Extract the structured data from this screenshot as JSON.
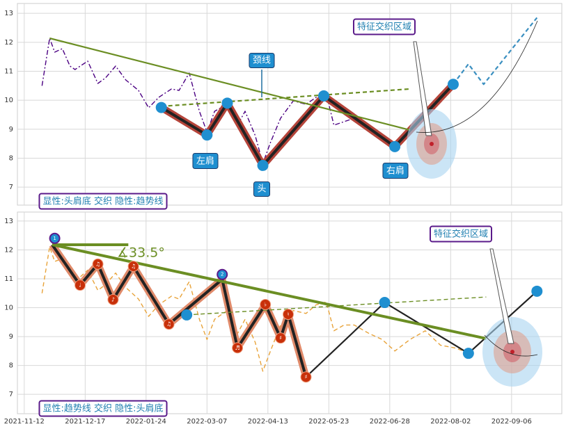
{
  "chart_data": [
    {
      "type": "line",
      "annotations": [
        "颈线",
        "左肩",
        "头",
        "右肩",
        "特征交织区域"
      ],
      "note": "显性:头肩底 交织 隐性:趋势线",
      "xlim": [
        -2.7,
        211.8
      ],
      "ylim": [
        6.38,
        13.34
      ],
      "yticks": [
        7,
        8,
        9,
        10,
        11,
        12,
        13
      ],
      "grid": true,
      "series": [
        {
          "color": "#4b0082",
          "linestyle": "dashdot",
          "linewidth": "thin",
          "x": [
            7,
            10,
            12,
            15,
            18,
            20,
            25,
            29,
            32,
            36,
            40,
            45,
            49,
            53,
            58,
            61,
            65,
            69,
            72,
            75,
            80,
            84,
            87,
            91,
            94,
            97,
            101,
            106,
            111,
            115,
            119,
            122,
            126,
            130,
            136,
            141,
            146
          ],
          "values": [
            10.5,
            12.14,
            11.66,
            11.78,
            11.18,
            11.06,
            11.35,
            10.58,
            10.77,
            11.18,
            10.7,
            10.34,
            9.74,
            10.1,
            10.39,
            10.34,
            10.94,
            9.62,
            8.9,
            9.62,
            9.86,
            9.14,
            9.62,
            8.78,
            7.82,
            8.54,
            9.38,
            9.98,
            9.86,
            10.1,
            10.22,
            9.14,
            9.26,
            9.38,
            9.02,
            8.78,
            8.42
          ]
        },
        {
          "color": "#222222",
          "highlight": "#b5443a",
          "linestyle": "solid",
          "linewidth": "thick",
          "x": [
            54,
            72,
            80,
            94,
            118,
            146,
            169
          ],
          "values": [
            9.75,
            8.8,
            9.9,
            7.75,
            10.15,
            8.4,
            10.55
          ]
        },
        {
          "color": "#6b8e23",
          "linestyle": "solid",
          "linewidth": "medium",
          "x": [
            10,
            152
          ],
          "values": [
            12.14,
            8.97
          ]
        },
        {
          "color": "#6b8e23",
          "linestyle": "dashed",
          "linewidth": "medium",
          "x": [
            54,
            152
          ],
          "values": [
            9.79,
            10.39
          ]
        },
        {
          "color": "#3a8fc0",
          "linestyle": "dashed",
          "linewidth": "medium",
          "x": [
            169,
            175,
            181,
            202
          ],
          "values": [
            10.55,
            11.25,
            10.55,
            12.85
          ]
        }
      ],
      "points": {
        "color": "#1f8fd0",
        "x": [
          54,
          72,
          80,
          94,
          118,
          146,
          169
        ],
        "values": [
          9.75,
          8.8,
          9.9,
          7.75,
          10.15,
          8.4,
          10.55
        ]
      }
    },
    {
      "type": "line",
      "annotations": [
        "特征交织区域",
        "∡33.5°"
      ],
      "note": "显性:趋势线 交织 隐性:头肩底",
      "xlim": [
        -2.7,
        211.8
      ],
      "ylim": [
        6.33,
        13.31
      ],
      "yticks": [
        7,
        8,
        9,
        10,
        11,
        12,
        13
      ],
      "grid": true,
      "xticks": [
        {
          "value": 0,
          "label": "2021-11-12"
        },
        {
          "value": 24,
          "label": "2021-12-17"
        },
        {
          "value": 48,
          "label": "2022-01-24"
        },
        {
          "value": 72,
          "label": "2022-03-07"
        },
        {
          "value": 96,
          "label": "2022-04-13"
        },
        {
          "value": 120,
          "label": "2022-05-23"
        },
        {
          "value": 144,
          "label": "2022-06-28"
        },
        {
          "value": 168,
          "label": "2022-08-02"
        },
        {
          "value": 192,
          "label": "2022-09-06"
        }
      ],
      "series": [
        {
          "color": "#e8a33a",
          "linestyle": "dashed",
          "linewidth": "thin",
          "x": [
            7,
            10,
            12,
            15,
            18,
            20,
            25,
            29,
            32,
            36,
            40,
            45,
            49,
            53,
            58,
            61,
            65,
            69,
            72,
            75,
            80,
            84,
            87,
            91,
            94,
            97,
            101,
            106,
            111,
            115,
            119,
            122,
            126,
            130,
            136,
            141,
            146,
            152,
            158,
            164,
            170,
            176
          ],
          "values": [
            10.5,
            12.1,
            11.6,
            11.7,
            11.1,
            10.9,
            11.3,
            10.6,
            10.8,
            11.2,
            10.7,
            10.3,
            9.7,
            10.1,
            10.4,
            10.3,
            10.9,
            9.6,
            8.9,
            9.6,
            9.9,
            9.1,
            9.6,
            8.8,
            7.8,
            8.5,
            9.4,
            9.9,
            9.8,
            10.1,
            10.2,
            9.2,
            9.4,
            9.4,
            9.1,
            8.9,
            8.5,
            8.9,
            9.2,
            8.7,
            8.6,
            8.4
          ]
        },
        {
          "color": "#222222",
          "highlight": "#e08a6a",
          "linestyle": "solid",
          "linewidth": "thick",
          "x": [
            11,
            22,
            29,
            35,
            43,
            57,
            78,
            84,
            95,
            101,
            104,
            111
          ],
          "values": [
            12.18,
            10.78,
            11.51,
            10.28,
            11.43,
            9.43,
            10.98,
            8.61,
            10.11,
            8.95,
            9.77,
            7.6
          ]
        },
        {
          "color": "#222222",
          "linestyle": "solid",
          "linewidth": "medium",
          "x": [
            111,
            142,
            175,
            202
          ],
          "values": [
            7.6,
            10.18,
            8.42,
            10.57
          ]
        },
        {
          "color": "#6b8e23",
          "linestyle": "solid",
          "linewidth": "thick",
          "x": [
            11,
            182
          ],
          "values": [
            12.18,
            8.93
          ]
        },
        {
          "color": "#6b8e23",
          "linestyle": "solid",
          "linewidth": "thick",
          "x": [
            11,
            41
          ],
          "values": [
            12.18,
            12.18
          ]
        },
        {
          "color": "#6b8e23",
          "linestyle": "dashed",
          "linewidth": "thin",
          "x": [
            64,
            182
          ],
          "values": [
            9.75,
            10.37
          ]
        }
      ],
      "points": {
        "color": "#1f8fd0",
        "x": [
          64,
          142,
          175,
          202
        ],
        "values": [
          9.75,
          10.18,
          8.42,
          10.57
        ]
      },
      "markers": {
        "color": "#c8300a",
        "x": [
          22,
          29,
          35,
          43,
          57,
          84,
          95,
          101,
          104,
          111
        ],
        "values": [
          10.78,
          11.51,
          10.28,
          11.43,
          9.43,
          8.61,
          10.11,
          8.95,
          9.77,
          7.6
        ],
        "labels": [
          "♩",
          "♫",
          "♪",
          "♫",
          "♫",
          "♬",
          "♭",
          "♯",
          "♮",
          "♯"
        ]
      },
      "numbered": {
        "color": "#1f8fd0",
        "x": [
          12,
          78
        ],
        "values": [
          12.4,
          11.15
        ],
        "labels": [
          "1",
          "2"
        ]
      }
    }
  ]
}
